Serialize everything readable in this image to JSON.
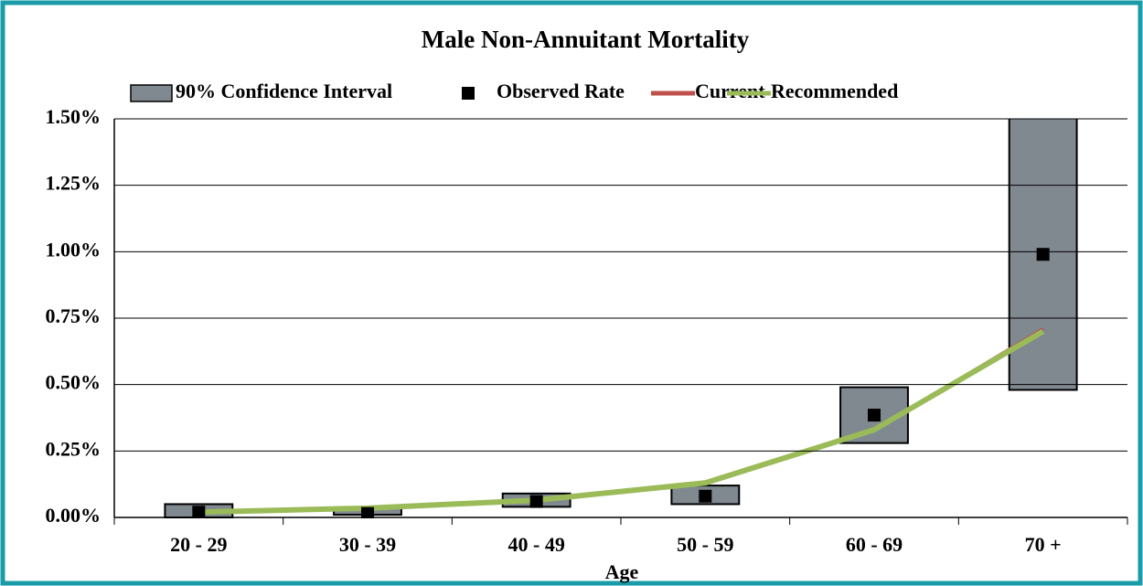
{
  "chart_data": {
    "type": "combo",
    "title": "Male Non-Annuitant Mortality",
    "x_label": "Age",
    "categories": [
      "20 - 29",
      "30 - 39",
      "40 - 49",
      "50 - 59",
      "60 - 69",
      "70 +"
    ],
    "series": [
      {
        "name": "90% Confidence Interval",
        "type": "range",
        "color": "#808890",
        "low": [
          0.0,
          0.01,
          0.04,
          0.05,
          0.28,
          0.48
        ],
        "high": [
          0.05,
          0.035,
          0.09,
          0.12,
          0.49,
          1.6
        ]
      },
      {
        "name": "Observed Rate",
        "type": "scatter",
        "color": "#000000",
        "values": [
          0.02,
          0.015,
          0.06,
          0.08,
          0.385,
          0.99
        ]
      },
      {
        "name": "Current",
        "type": "line",
        "color": "#c0504d",
        "values": [
          0.02,
          0.035,
          0.06,
          0.13,
          0.33,
          0.71
        ]
      },
      {
        "name": "Recommended",
        "type": "line",
        "color": "#9bbb59",
        "values": [
          0.02,
          0.035,
          0.065,
          0.13,
          0.33,
          0.7
        ]
      }
    ],
    "ylim": [
      0,
      1.5
    ],
    "yticks": [
      {
        "value": 0,
        "label": "0.00%"
      },
      {
        "value": 0.25,
        "label": "0.25%"
      },
      {
        "value": 0.5,
        "label": "0.50%"
      },
      {
        "value": 0.75,
        "label": "0.75%"
      },
      {
        "value": 1.0,
        "label": "1.00%"
      },
      {
        "value": 1.25,
        "label": "1.25%"
      },
      {
        "value": 1.5,
        "label": "1.50%"
      }
    ],
    "grid": true,
    "legend": "top"
  }
}
